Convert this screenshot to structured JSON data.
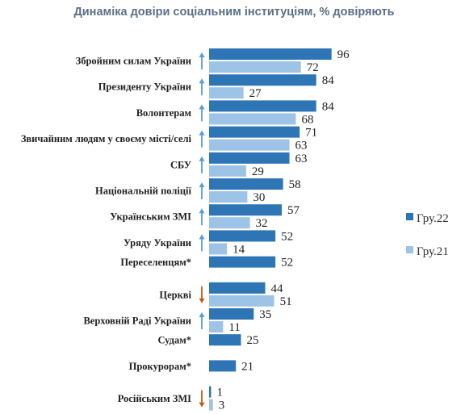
{
  "chart_data": {
    "type": "bar",
    "orientation": "horizontal",
    "title": "Динаміка довіри соціальним інституціям, % довіряють",
    "xlim": [
      0,
      100
    ],
    "grid": false,
    "legend_position": "right",
    "colors": {
      "Гру.22": "#2e75b6",
      "Гру.21": "#9dc3e6",
      "arrow_up": "#5b9bd5",
      "arrow_down": "#c55a11"
    },
    "categories": [
      "Збройним силам України",
      "Президенту України",
      "Волонтерам",
      "Звичайним людям у своєму місті/селі",
      "СБУ",
      "Національній поліції",
      "Українським ЗМІ",
      "Уряду України",
      "Переселенцям*",
      "Церкві",
      "Верховній Раді України",
      "Судам*",
      "Прокурорам*",
      "Російським ЗМІ"
    ],
    "trend": [
      "up",
      "up",
      "up",
      "up",
      "up",
      "up",
      "up",
      "up",
      null,
      "down",
      "up",
      null,
      null,
      "down"
    ],
    "series": [
      {
        "name": "Гру.22",
        "values": [
          96,
          84,
          84,
          71,
          63,
          58,
          57,
          52,
          52,
          44,
          35,
          25,
          21,
          1
        ]
      },
      {
        "name": "Гру.21",
        "values": [
          72,
          27,
          68,
          63,
          29,
          30,
          32,
          14,
          null,
          51,
          11,
          null,
          null,
          3
        ]
      }
    ]
  }
}
